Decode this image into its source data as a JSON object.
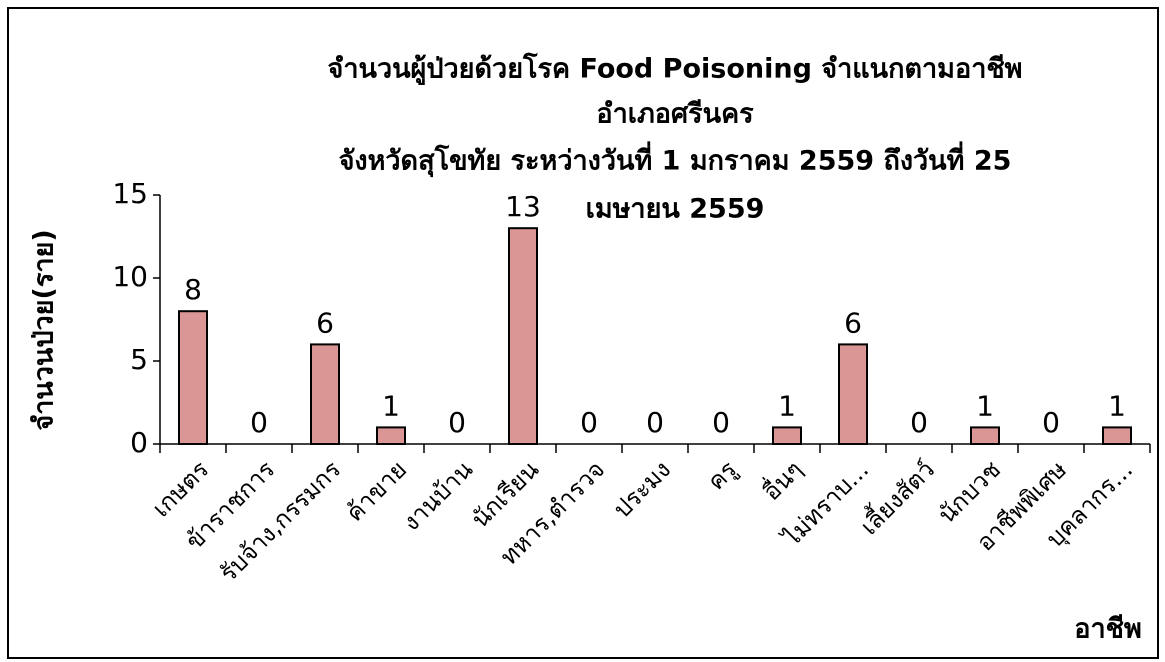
{
  "chart_data": {
    "type": "bar",
    "title": [
      "จำนวนผู้ป่วยด้วยโรค Food Poisoning  จำแนกตามอาชีพ",
      "อำเภอศรีนคร",
      "จังหวัดสุโขทัย  ระหว่างวันที่  1 มกราคม 2559  ถึงวันที่  25",
      "เมษายน 2559"
    ],
    "y_label": "จำนวนป่วย(ราย)",
    "x_label": "อาชีพ",
    "categories": [
      "เกษตร",
      "ข้าราชการ",
      "รับจ้าง,กรรมกร",
      "ค้าขาย",
      "งานบ้าน",
      "นักเรียน",
      "ทหาร,ตำรวจ",
      "ประมง",
      "ครู",
      "อื่นๆ",
      "ไม่ทราบ...",
      "เลี้ยงสัตว์",
      "นักบวช",
      "อาชีพพิเศษ",
      "บุคลากร..."
    ],
    "values": [
      8,
      0,
      6,
      1,
      0,
      13,
      0,
      0,
      0,
      1,
      6,
      0,
      1,
      0,
      1
    ],
    "color": "#d99694",
    "ylim": [
      0,
      15
    ],
    "yticks": [
      0,
      5,
      10,
      15
    ],
    "grid": false
  }
}
